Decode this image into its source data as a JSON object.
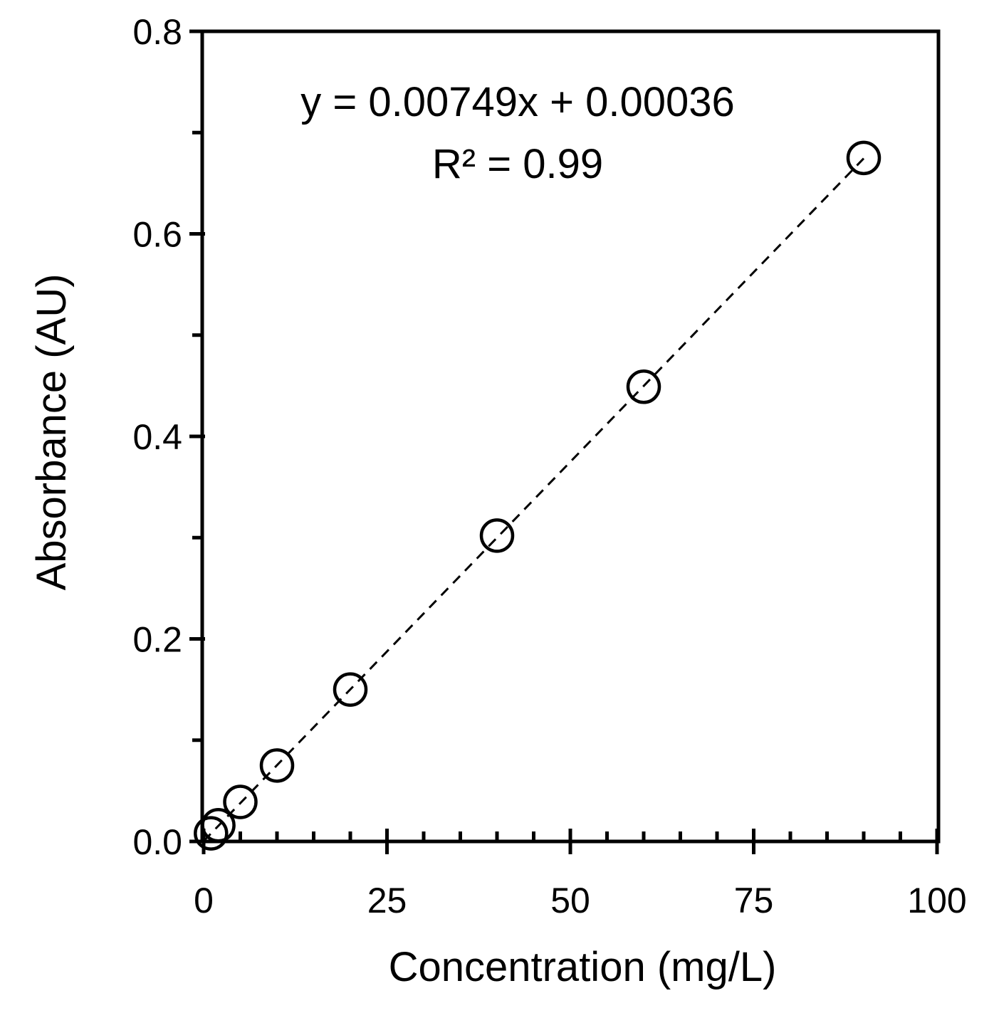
{
  "chart_data": {
    "type": "scatter",
    "xlabel": "Concentration (mg/L)",
    "ylabel": "Absorbance (AU)",
    "xlim": [
      0,
      100
    ],
    "ylim": [
      0,
      0.8
    ],
    "x_ticks": [
      0,
      25,
      50,
      75,
      100
    ],
    "x_tick_labels": [
      "0",
      "25",
      "50",
      "75",
      "100"
    ],
    "y_ticks": [
      0,
      0.2,
      0.4,
      0.6,
      0.8
    ],
    "y_tick_labels": [
      "0.0",
      "0.2",
      "0.4",
      "0.6",
      "0.8"
    ],
    "x_minor_step": 5,
    "y_minor_step": 0.1,
    "grid": false,
    "marker": "open-circle",
    "series": [
      {
        "x": [
          1,
          2,
          5,
          10,
          20,
          40,
          60,
          90
        ],
        "y": [
          0.008,
          0.016,
          0.039,
          0.075,
          0.15,
          0.302,
          0.449,
          0.675
        ]
      }
    ],
    "trendline": {
      "style": "dashed",
      "slope": 0.00749,
      "intercept": 0.00036,
      "x_range": [
        0,
        90
      ]
    },
    "annotations": [
      "y = 0.00749x + 0.00036",
      "R² = 0.99"
    ]
  }
}
